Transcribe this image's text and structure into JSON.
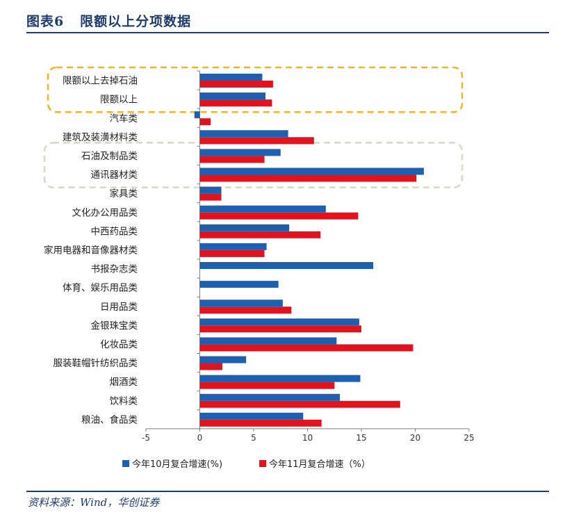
{
  "header": {
    "title": "图表6   限额以上分项数据"
  },
  "footer": {
    "source": "资料来源：Wind，华创证券"
  },
  "colors": {
    "series_oct": "#1F5FB0",
    "series_nov": "#E0141E",
    "highlight_top": "#F0B429",
    "highlight_mid": "#D8D8C4",
    "title": "#1F3A6E"
  },
  "chart_data": {
    "type": "bar",
    "orientation": "horizontal",
    "categories": [
      "限额以上去掉石油",
      "限额以上",
      "汽车类",
      "建筑及装潢材料类",
      "石油及制品类",
      "通讯器材类",
      "家具类",
      "文化办公用品类",
      "中西药品类",
      "家用电器和音像器材类",
      "书报杂志类",
      "体育、娱乐用品类",
      "日用品类",
      "金银珠宝类",
      "化妆品类",
      "服装鞋帽针纺织品类",
      "烟酒类",
      "饮料类",
      "粮油、食品类"
    ],
    "series": [
      {
        "name": "今年10月复合增速(%)",
        "values": [
          5.8,
          6.1,
          -0.5,
          8.2,
          7.5,
          20.8,
          2.0,
          11.7,
          8.3,
          6.2,
          16.1,
          7.3,
          7.7,
          14.8,
          12.7,
          4.3,
          14.9,
          13.0,
          9.6
        ]
      },
      {
        "name": "今年11月复合增速（%）",
        "values": [
          6.8,
          6.7,
          1.0,
          10.6,
          6.0,
          20.1,
          2.0,
          14.7,
          11.2,
          6.0,
          null,
          null,
          8.5,
          15.0,
          19.8,
          2.1,
          12.5,
          18.6,
          11.3
        ]
      }
    ],
    "xlim": [
      -5,
      25
    ],
    "xticks": [
      "-5",
      "0",
      "5",
      "10",
      "15",
      "20",
      "25"
    ],
    "highlight_groups": [
      {
        "categories": [
          "限额以上去掉石油",
          "限额以上"
        ],
        "style": "dashed",
        "color": "#F0B429"
      },
      {
        "categories": [
          "石油及制品类",
          "通讯器材类"
        ],
        "style": "dashed",
        "color": "#D8D8C4"
      }
    ],
    "legend_position": "bottom"
  }
}
